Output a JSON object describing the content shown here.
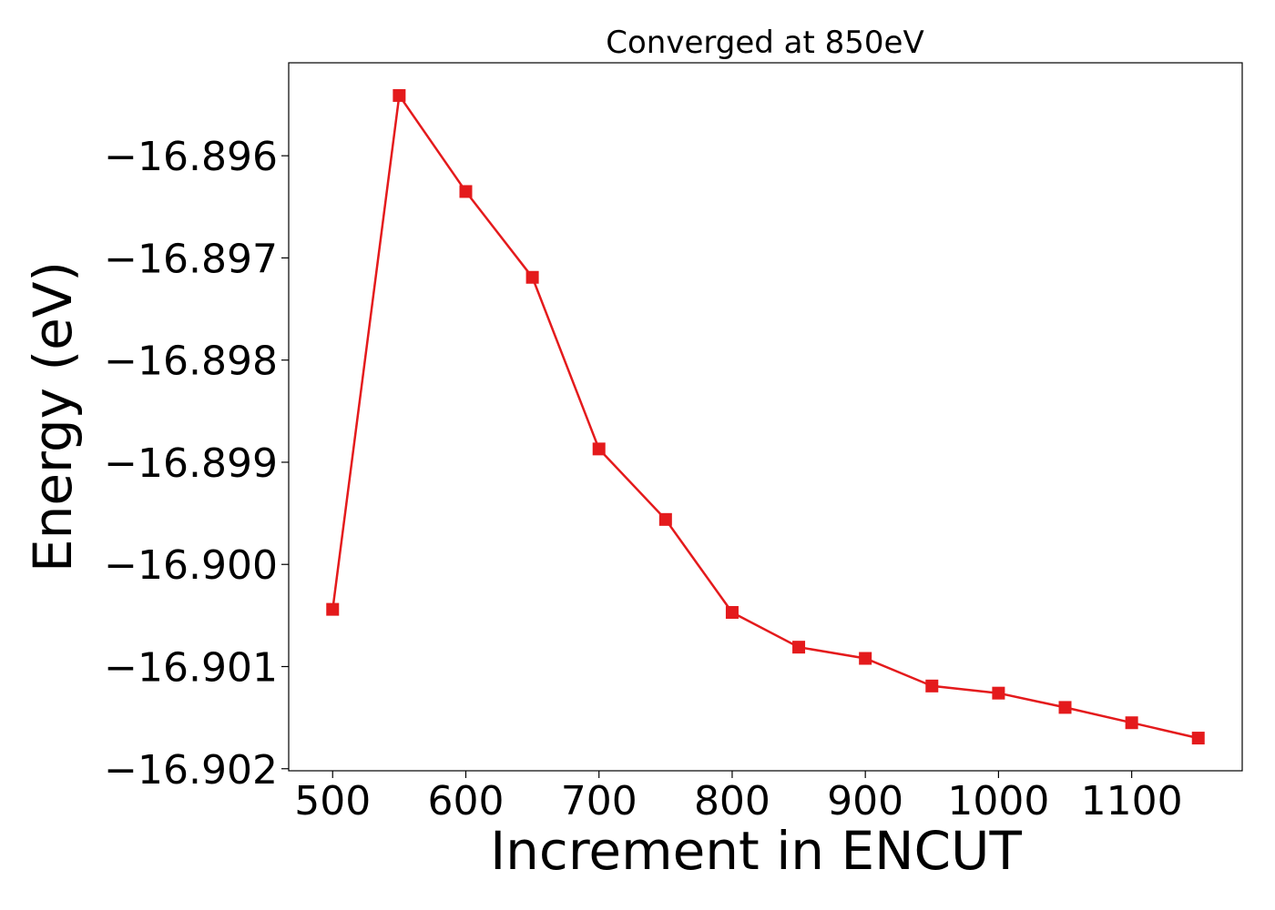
{
  "chart_data": {
    "type": "line",
    "title": "Converged at 850eV",
    "xlabel": "Increment in ENCUT",
    "ylabel": "Energy (eV)",
    "xlim": [
      467,
      1183
    ],
    "ylim": [
      -16.90202,
      -16.89509
    ],
    "xticks": [
      500,
      600,
      700,
      800,
      900,
      1000,
      1100
    ],
    "xtick_labels": [
      "500",
      "600",
      "700",
      "800",
      "900",
      "1000",
      "1100"
    ],
    "yticks": [
      -16.896,
      -16.897,
      -16.898,
      -16.899,
      -16.9,
      -16.901,
      -16.902
    ],
    "ytick_labels": [
      "−16.896",
      "−16.897",
      "−16.898",
      "−16.899",
      "−16.900",
      "−16.901",
      "−16.902"
    ],
    "grid": false,
    "series": [
      {
        "marker": "square-marker",
        "color": "#e41a1c",
        "x": [
          500,
          550,
          600,
          650,
          700,
          750,
          800,
          850,
          900,
          950,
          1000,
          1050,
          1100,
          1150
        ],
        "y": [
          -16.90044,
          -16.89541,
          -16.89635,
          -16.89719,
          -16.89887,
          -16.89956,
          -16.90047,
          -16.90081,
          -16.90092,
          -16.90119,
          -16.90126,
          -16.9014,
          -16.90155,
          -16.9017
        ]
      }
    ]
  }
}
